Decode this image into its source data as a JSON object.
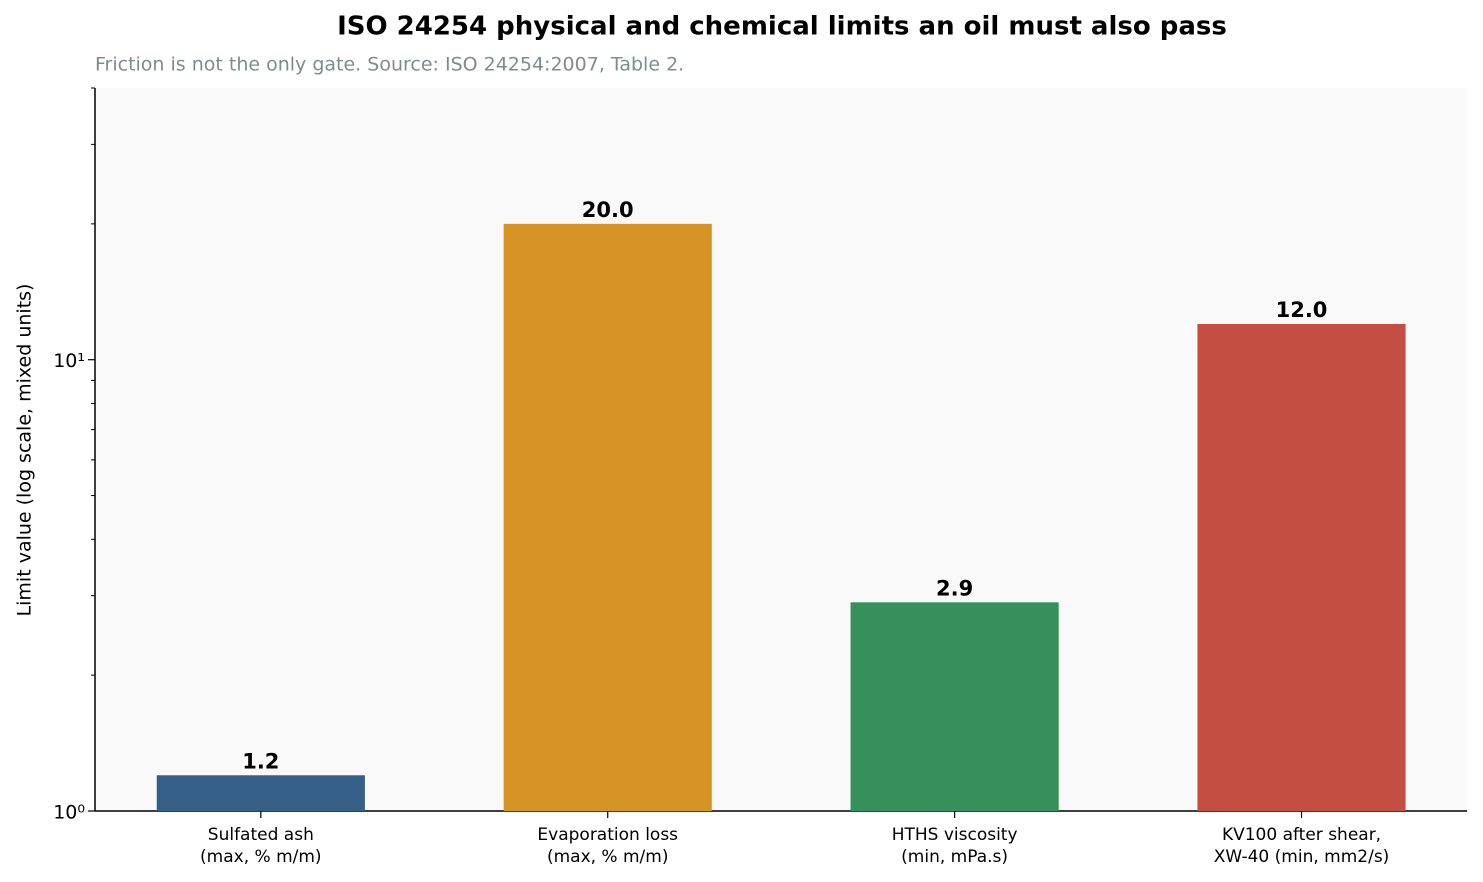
{
  "chart_data": {
    "type": "bar",
    "title": "ISO 24254 physical and chemical limits an oil must also pass",
    "subtitle": "Friction is not the only gate. Source: ISO 24254:2007, Table 2.",
    "y_label": "Limit value (log scale, mixed units)",
    "categories": [
      "Sulfated ash\n(max, % m/m)",
      "Evaporation loss\n(max, % m/m)",
      "HTHS viscosity\n(min, mPa.s)",
      "KV100 after shear,\nXW-40 (min, mm2/s)"
    ],
    "values": [
      1.2,
      20,
      2.9,
      12
    ],
    "value_labels": [
      "1.2",
      "20.0",
      "2.9",
      "12.0"
    ],
    "colors": [
      "#355f86",
      "#d69427",
      "#35905c",
      "#c44e42"
    ],
    "log_scale": true,
    "ylim": [
      1,
      40
    ],
    "yticks": [
      {
        "value": 1,
        "label": "10⁰"
      },
      {
        "value": 10,
        "label": "10¹"
      }
    ],
    "yminorticks": [
      2,
      3,
      4,
      5,
      6,
      7,
      8,
      9,
      20,
      30,
      40
    ]
  }
}
